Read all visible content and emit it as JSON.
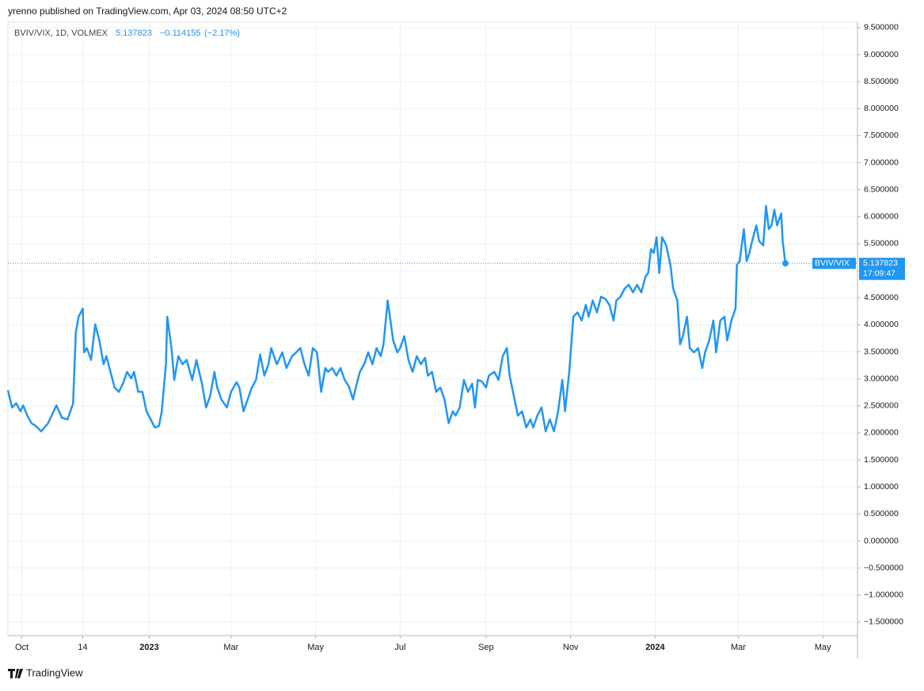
{
  "chart_data": {
    "type": "line",
    "header": "yrenno published on TradingView.com, Apr 03, 2024 08:50 UTC+2",
    "legend_symbol": "BVIV/VIX, 1D, VOLMEX",
    "change": "−0.114155",
    "change_pct": "(−2.17%)",
    "price_label_name": "BVIV/VIX",
    "countdown": "17:09:47",
    "brand": "TradingView",
    "grid": true,
    "xlim": [
      0,
      613
    ],
    "ylim": [
      -1.75,
      9.6
    ],
    "xticks": [
      {
        "value": 10,
        "label": "Oct"
      },
      {
        "value": 54,
        "label": "14"
      },
      {
        "value": 102,
        "label": "2023"
      },
      {
        "value": 161,
        "label": "Mar"
      },
      {
        "value": 222,
        "label": "May"
      },
      {
        "value": 283,
        "label": "Jul"
      },
      {
        "value": 345,
        "label": "Sep"
      },
      {
        "value": 406,
        "label": "Nov"
      },
      {
        "value": 467,
        "label": "2024"
      },
      {
        "value": 527,
        "label": "Mar"
      },
      {
        "value": 588,
        "label": "May"
      }
    ],
    "yticks": [
      {
        "value": 9.5,
        "label": "9.500000"
      },
      {
        "value": 9,
        "label": "9.000000"
      },
      {
        "value": 8.5,
        "label": "8.500000"
      },
      {
        "value": 8,
        "label": "8.000000"
      },
      {
        "value": 7.5,
        "label": "7.500000"
      },
      {
        "value": 7,
        "label": "7.000000"
      },
      {
        "value": 6.5,
        "label": "6.500000"
      },
      {
        "value": 6,
        "label": "6.000000"
      },
      {
        "value": 5.5,
        "label": "5.500000"
      },
      {
        "value": 5,
        "label": "5.000000"
      },
      {
        "value": 4.5,
        "label": "4.500000"
      },
      {
        "value": 4,
        "label": "4.000000"
      },
      {
        "value": 3.5,
        "label": "3.500000"
      },
      {
        "value": 3,
        "label": "3.000000"
      },
      {
        "value": 2.5,
        "label": "2.500000"
      },
      {
        "value": 2,
        "label": "2.000000"
      },
      {
        "value": 1.5,
        "label": "1.500000"
      },
      {
        "value": 1,
        "label": "1.000000"
      },
      {
        "value": 0.5,
        "label": "0.500000"
      },
      {
        "value": 0,
        "label": "0.000000"
      },
      {
        "value": -0.5,
        "label": "−0.500000"
      },
      {
        "value": -1,
        "label": "−1.000000"
      },
      {
        "value": -1.5,
        "label": "−1.500000"
      }
    ],
    "x": [
      0,
      3,
      6,
      9,
      11,
      14,
      17,
      20,
      24,
      29,
      33,
      35,
      39,
      43,
      47,
      49,
      51,
      54,
      55,
      57,
      60,
      63,
      66,
      69,
      71,
      74,
      77,
      80,
      83,
      86,
      89,
      91,
      94,
      97,
      100,
      103,
      106,
      109,
      111,
      114,
      115,
      118,
      120,
      123,
      126,
      129,
      133,
      136,
      140,
      143,
      146,
      149,
      151,
      154,
      158,
      161,
      165,
      167,
      170,
      173,
      176,
      179,
      182,
      185,
      188,
      190,
      194,
      198,
      201,
      205,
      208,
      211,
      214,
      217,
      220,
      223,
      226,
      229,
      231,
      234,
      237,
      240,
      243,
      246,
      249,
      251,
      254,
      257,
      260,
      263,
      266,
      269,
      271,
      274,
      276,
      278,
      281,
      283,
      286,
      289,
      292,
      295,
      298,
      301,
      303,
      306,
      309,
      312,
      315,
      318,
      321,
      323,
      326,
      329,
      332,
      335,
      337,
      339,
      342,
      345,
      347,
      351,
      354,
      357,
      360,
      362,
      365,
      368,
      371,
      374,
      377,
      379,
      382,
      385,
      388,
      391,
      394,
      397,
      400,
      402,
      405,
      408,
      411,
      414,
      417,
      419,
      422,
      425,
      428,
      431,
      434,
      437,
      439,
      442,
      445,
      448,
      451,
      454,
      457,
      460,
      462,
      464,
      466,
      468,
      470,
      472,
      475,
      478,
      480,
      483,
      485,
      487,
      490,
      492,
      495,
      498,
      501,
      503,
      506,
      509,
      511,
      514,
      517,
      519,
      522,
      525,
      526,
      528,
      531,
      533,
      535,
      537,
      540,
      542,
      545,
      547,
      549,
      551,
      553,
      555,
      558,
      559,
      561
    ],
    "series": [
      {
        "name": "BVIV/VIX",
        "color": "#2196f3",
        "values": [
          2.79,
          2.47,
          2.55,
          2.4,
          2.51,
          2.32,
          2.18,
          2.13,
          2.03,
          2.18,
          2.4,
          2.51,
          2.28,
          2.25,
          2.54,
          3.86,
          4.15,
          4.3,
          3.49,
          3.57,
          3.35,
          4.01,
          3.71,
          3.27,
          3.42,
          3.13,
          2.84,
          2.76,
          2.91,
          3.13,
          3.01,
          3.13,
          2.76,
          2.76,
          2.4,
          2.25,
          2.1,
          2.13,
          2.4,
          3.27,
          4.15,
          3.57,
          2.98,
          3.42,
          3.27,
          3.35,
          2.98,
          3.35,
          2.91,
          2.47,
          2.69,
          3.13,
          2.84,
          2.62,
          2.47,
          2.76,
          2.94,
          2.84,
          2.4,
          2.62,
          2.84,
          2.98,
          3.45,
          3.06,
          3.27,
          3.57,
          3.27,
          3.49,
          3.2,
          3.42,
          3.49,
          3.57,
          3.27,
          3.06,
          3.57,
          3.49,
          2.76,
          3.2,
          3.13,
          3.2,
          3.06,
          3.2,
          2.98,
          2.86,
          2.62,
          2.84,
          3.13,
          3.27,
          3.49,
          3.27,
          3.57,
          3.42,
          3.64,
          4.45,
          4.08,
          3.71,
          3.49,
          3.57,
          3.79,
          3.35,
          3.13,
          3.42,
          3.27,
          3.39,
          3.06,
          3.13,
          2.76,
          2.84,
          2.62,
          2.18,
          2.4,
          2.32,
          2.47,
          2.98,
          2.76,
          2.91,
          2.47,
          2.98,
          2.95,
          2.84,
          3.06,
          3.13,
          2.98,
          3.42,
          3.57,
          3.06,
          2.69,
          2.32,
          2.4,
          2.1,
          2.25,
          2.1,
          2.32,
          2.47,
          2.03,
          2.25,
          2.03,
          2.4,
          2.98,
          2.4,
          3.13,
          4.15,
          4.23,
          4.08,
          4.37,
          4.15,
          4.45,
          4.23,
          4.52,
          4.48,
          4.37,
          4.08,
          4.45,
          4.52,
          4.67,
          4.74,
          4.6,
          4.74,
          4.6,
          4.89,
          4.96,
          5.4,
          5.33,
          5.62,
          4.96,
          5.62,
          5.47,
          5.11,
          4.67,
          4.45,
          3.64,
          3.79,
          4.15,
          3.57,
          3.49,
          3.57,
          3.2,
          3.49,
          3.71,
          4.08,
          3.49,
          4.08,
          4.15,
          3.71,
          4.08,
          4.3,
          5.11,
          5.18,
          5.77,
          5.18,
          5.33,
          5.55,
          5.84,
          5.55,
          5.47,
          6.2,
          5.77,
          5.84,
          6.13,
          5.84,
          6.06,
          5.55,
          5.137823
        ]
      }
    ]
  }
}
